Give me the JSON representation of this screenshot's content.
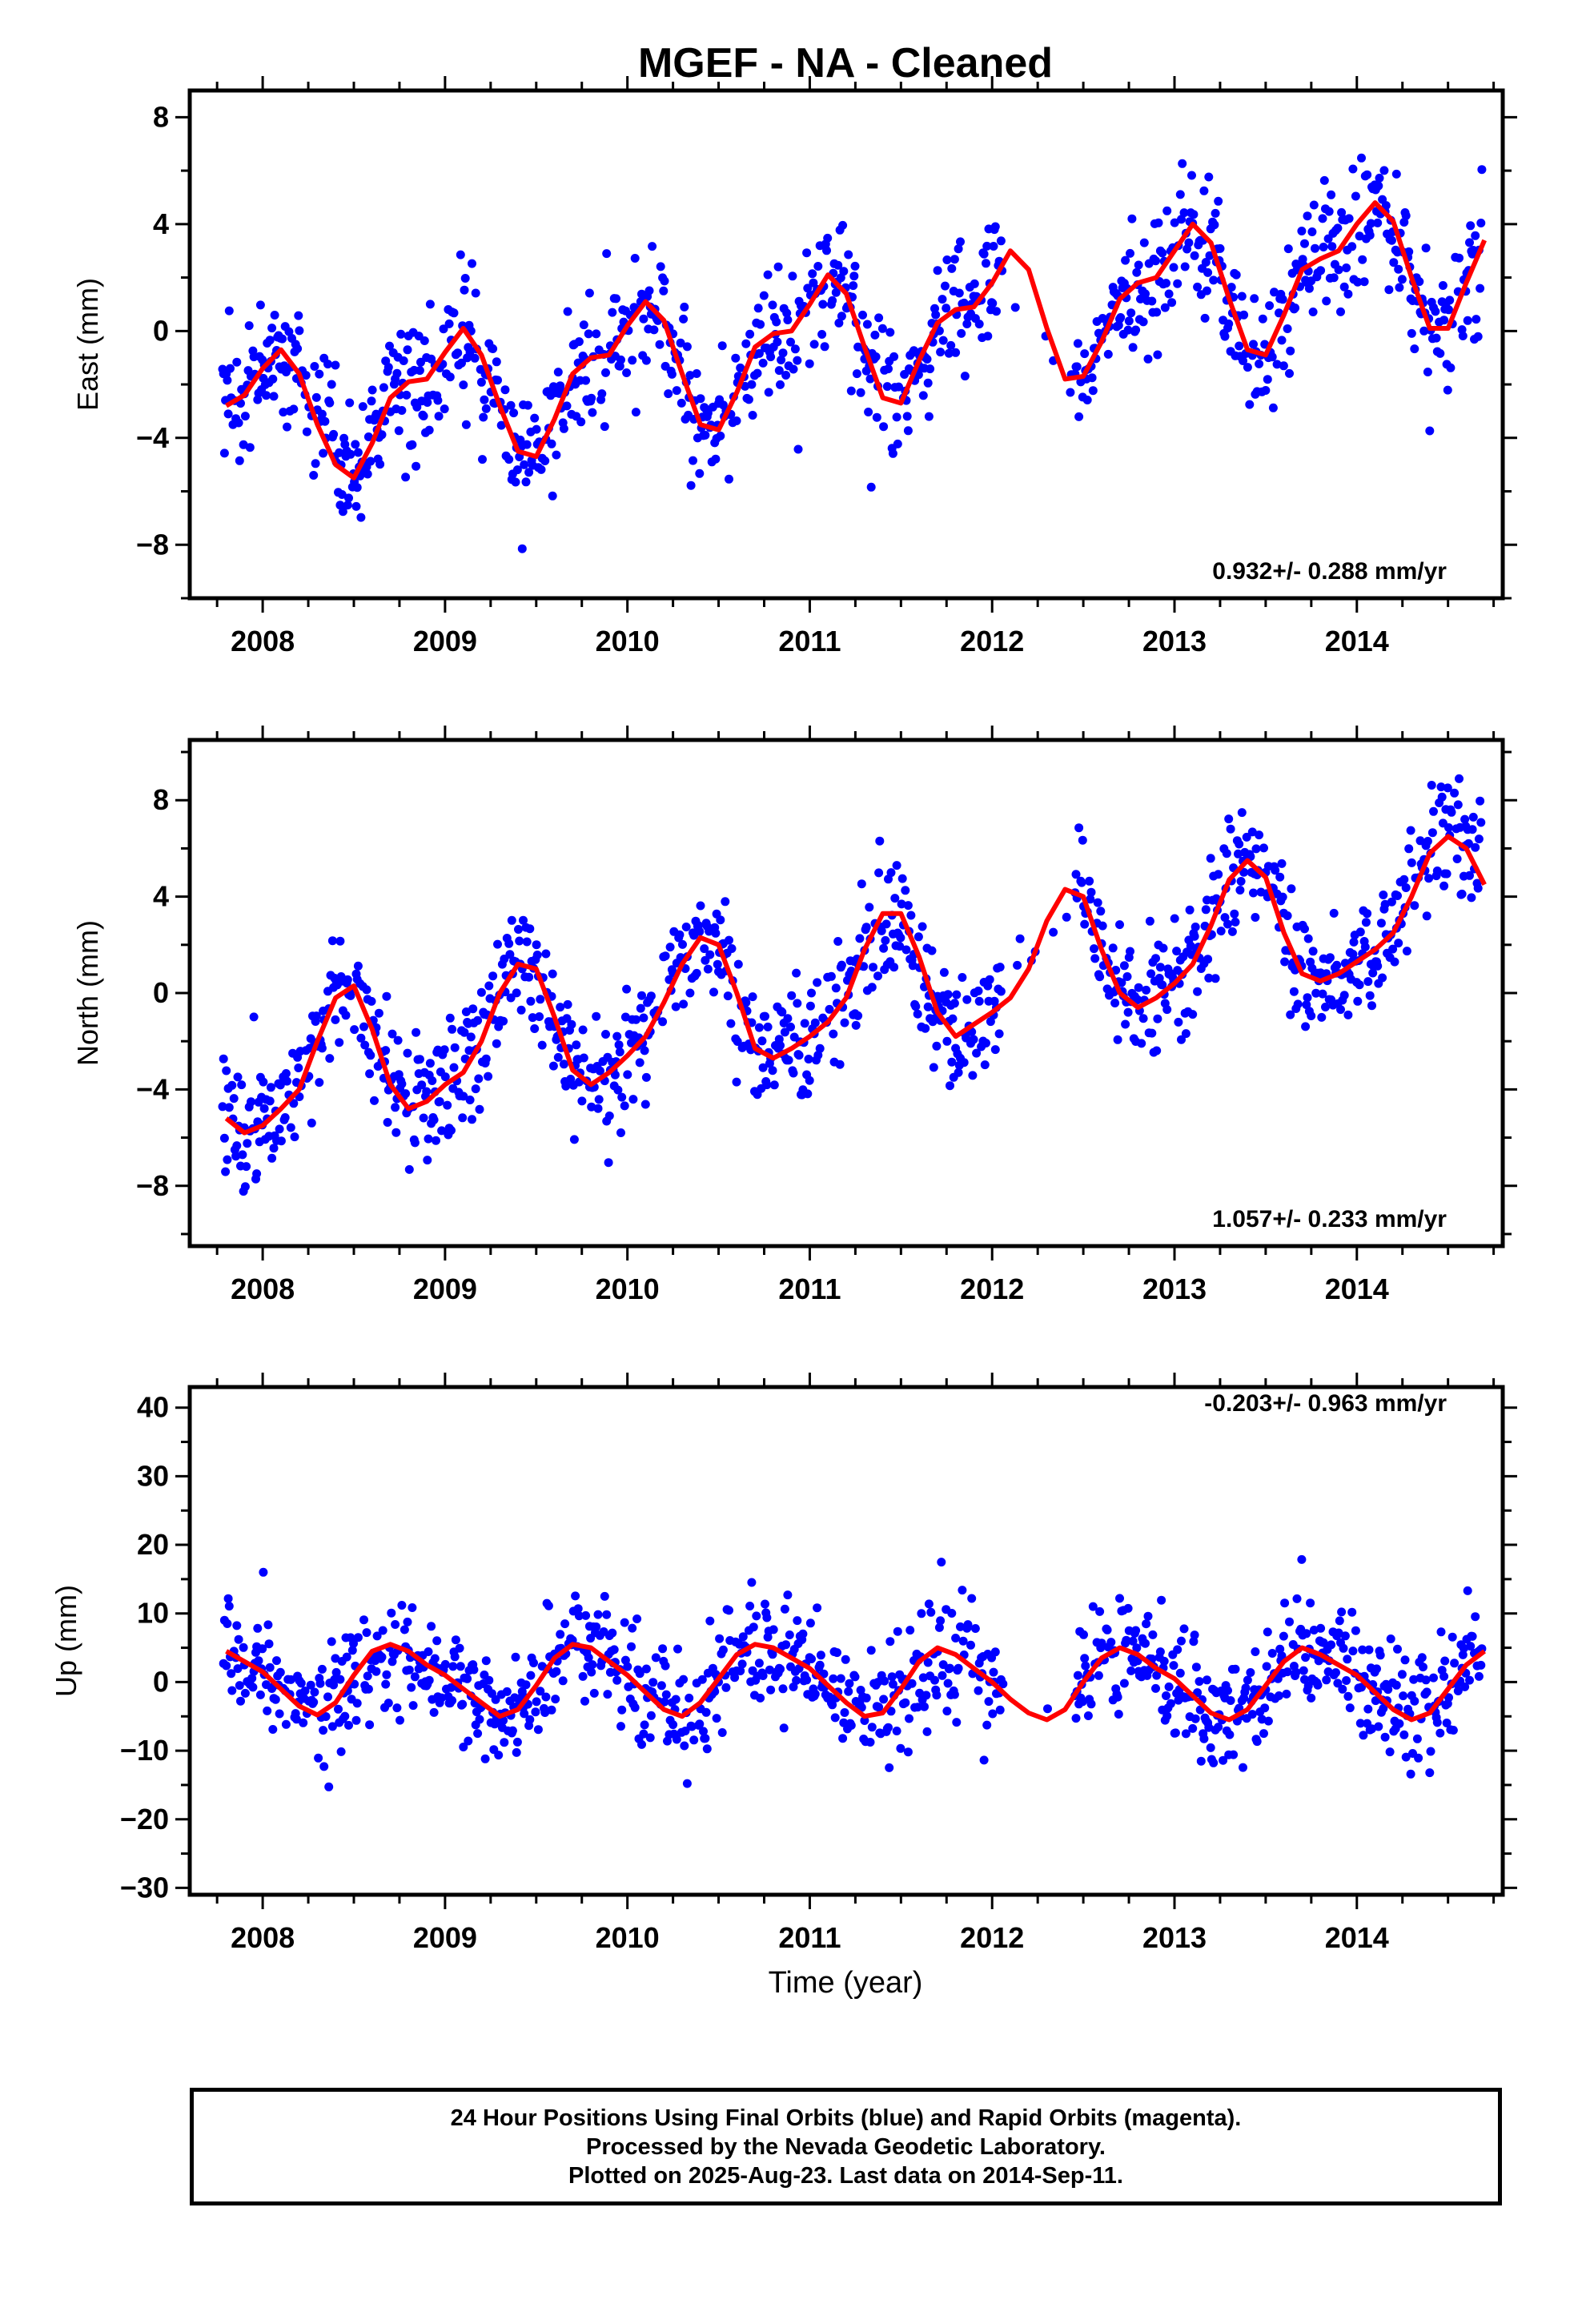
{
  "title": "MGEF  - NA - Cleaned",
  "xlabel": "Time (year)",
  "footer": {
    "line1": "24 Hour Positions Using Final Orbits (blue) and Rapid Orbits (magenta).",
    "line2": "Processed by the Nevada Geodetic Laboratory.",
    "line3": "Plotted on 2025-Aug-23. Last data on 2014-Sep-11."
  },
  "colors": {
    "points": "#0000ff",
    "fit": "#ff0000",
    "axes": "#000000"
  },
  "chart_data": [
    {
      "type": "scatter",
      "ylabel": "East (mm)",
      "rate": "0.932+/- 0.288 mm/yr",
      "xlim": [
        2007.6,
        2014.8
      ],
      "ylim": [
        -10.0,
        9.0
      ],
      "xticks": [
        2008,
        2009,
        2010,
        2011,
        2012,
        2013,
        2014
      ],
      "yticks": [
        -8,
        -4,
        0,
        4,
        8
      ],
      "ytick_labels": [
        "−8",
        "−4",
        "0",
        "4",
        "8"
      ],
      "fit": {
        "x": [
          2007.8,
          2007.9,
          2008.0,
          2008.1,
          2008.2,
          2008.3,
          2008.4,
          2008.5,
          2008.6,
          2008.7,
          2008.8,
          2008.9,
          2009.0,
          2009.1,
          2009.2,
          2009.3,
          2009.4,
          2009.5,
          2009.6,
          2009.7,
          2009.8,
          2009.9,
          2010.0,
          2010.1,
          2010.2,
          2010.3,
          2010.4,
          2010.5,
          2010.6,
          2010.7,
          2010.8,
          2010.9,
          2011.0,
          2011.1,
          2011.2,
          2011.3,
          2011.4,
          2011.5,
          2011.6,
          2011.7,
          2011.8,
          2011.9,
          2012.0,
          2012.1,
          2012.2,
          2012.3,
          2012.4,
          2012.5,
          2012.6,
          2012.7,
          2012.8,
          2012.9,
          2013.0,
          2013.1,
          2013.2,
          2013.3,
          2013.4,
          2013.5,
          2013.6,
          2013.7,
          2013.8,
          2013.9,
          2014.0,
          2014.1,
          2014.2,
          2014.3,
          2014.4,
          2014.5,
          2014.6,
          2014.7
        ],
        "y": [
          -2.8,
          -2.4,
          -1.4,
          -0.7,
          -1.6,
          -3.5,
          -5.0,
          -5.5,
          -4.2,
          -2.5,
          -1.9,
          -1.8,
          -0.8,
          0.1,
          -0.9,
          -2.8,
          -4.5,
          -4.7,
          -3.3,
          -1.6,
          -1.0,
          -0.9,
          0.2,
          1.1,
          0.4,
          -1.6,
          -3.5,
          -3.7,
          -2.3,
          -0.6,
          -0.1,
          0.0,
          1.0,
          2.1,
          1.4,
          -0.6,
          -2.5,
          -2.7,
          -1.1,
          0.3,
          0.8,
          0.9,
          1.8,
          3.0,
          2.3,
          0.1,
          -1.8,
          -1.7,
          -0.4,
          1.2,
          1.8,
          2.0,
          3.0,
          4.0,
          3.3,
          1.2,
          -0.7,
          -0.9,
          0.6,
          2.3,
          2.7,
          3.0,
          4.0,
          4.8,
          4.1,
          2.0,
          0.1,
          0.1,
          1.8,
          3.4
        ]
      }
    },
    {
      "type": "scatter",
      "ylabel": "North (mm)",
      "rate": "1.057+/- 0.233 mm/yr",
      "xlim": [
        2007.6,
        2014.8
      ],
      "ylim": [
        -10.5,
        10.5
      ],
      "xticks": [
        2008,
        2009,
        2010,
        2011,
        2012,
        2013,
        2014
      ],
      "yticks": [
        -8,
        -4,
        0,
        4,
        8
      ],
      "ytick_labels": [
        "−8",
        "−4",
        "0",
        "4",
        "8"
      ],
      "fit": {
        "x": [
          2007.8,
          2007.9,
          2008.0,
          2008.1,
          2008.2,
          2008.3,
          2008.4,
          2008.5,
          2008.6,
          2008.7,
          2008.8,
          2008.9,
          2009.0,
          2009.1,
          2009.2,
          2009.3,
          2009.4,
          2009.5,
          2009.6,
          2009.7,
          2009.8,
          2009.9,
          2010.0,
          2010.1,
          2010.2,
          2010.3,
          2010.4,
          2010.5,
          2010.6,
          2010.7,
          2010.8,
          2010.9,
          2011.0,
          2011.1,
          2011.2,
          2011.3,
          2011.4,
          2011.5,
          2011.6,
          2011.7,
          2011.8,
          2011.9,
          2012.0,
          2012.1,
          2012.2,
          2012.3,
          2012.4,
          2012.5,
          2012.6,
          2012.7,
          2012.8,
          2012.9,
          2013.0,
          2013.1,
          2013.2,
          2013.3,
          2013.4,
          2013.5,
          2013.6,
          2013.7,
          2013.8,
          2013.9,
          2014.0,
          2014.1,
          2014.2,
          2014.3,
          2014.4,
          2014.5,
          2014.6,
          2014.7
        ],
        "y": [
          -5.2,
          -5.8,
          -5.5,
          -4.8,
          -4.0,
          -2.0,
          -0.2,
          0.3,
          -1.5,
          -3.8,
          -4.8,
          -4.5,
          -3.8,
          -3.3,
          -2.0,
          0.0,
          1.2,
          1.0,
          -1.0,
          -3.2,
          -3.8,
          -3.3,
          -2.6,
          -1.8,
          -0.4,
          1.2,
          2.3,
          2.0,
          0.0,
          -2.3,
          -2.7,
          -2.3,
          -1.8,
          -1.2,
          -0.2,
          1.8,
          3.3,
          3.3,
          1.5,
          -0.8,
          -1.8,
          -1.3,
          -0.8,
          -0.2,
          1.0,
          3.0,
          4.3,
          4.0,
          1.8,
          0.0,
          -0.6,
          -0.2,
          0.4,
          1.2,
          2.8,
          4.7,
          5.5,
          4.8,
          2.5,
          0.8,
          0.5,
          0.8,
          1.3,
          1.8,
          2.5,
          4.0,
          5.8,
          6.5,
          6.0,
          4.5
        ]
      }
    },
    {
      "type": "scatter",
      "ylabel": "Up (mm)",
      "rate": "-0.203+/- 0.963 mm/yr",
      "xlim": [
        2007.6,
        2014.8
      ],
      "ylim": [
        -31.0,
        43.0
      ],
      "xticks": [
        2008,
        2009,
        2010,
        2011,
        2012,
        2013,
        2014
      ],
      "yticks": [
        -30,
        -20,
        -10,
        0,
        10,
        20,
        30,
        40
      ],
      "ytick_labels": [
        "−30",
        "−20",
        "−10",
        "0",
        "10",
        "20",
        "30",
        "40"
      ],
      "fit": {
        "x": [
          2007.8,
          2007.9,
          2008.0,
          2008.1,
          2008.2,
          2008.3,
          2008.4,
          2008.5,
          2008.6,
          2008.7,
          2008.8,
          2008.9,
          2009.0,
          2009.1,
          2009.2,
          2009.3,
          2009.4,
          2009.5,
          2009.6,
          2009.7,
          2009.8,
          2009.9,
          2010.0,
          2010.1,
          2010.2,
          2010.3,
          2010.4,
          2010.5,
          2010.6,
          2010.7,
          2010.8,
          2010.9,
          2011.0,
          2011.1,
          2011.2,
          2011.3,
          2011.4,
          2011.5,
          2011.6,
          2011.7,
          2011.8,
          2011.9,
          2012.0,
          2012.1,
          2012.2,
          2012.3,
          2012.4,
          2012.5,
          2012.6,
          2012.7,
          2012.8,
          2012.9,
          2013.0,
          2013.1,
          2013.2,
          2013.3,
          2013.4,
          2013.5,
          2013.6,
          2013.7,
          2013.8,
          2013.9,
          2014.0,
          2014.1,
          2014.2,
          2014.3,
          2014.4,
          2014.5,
          2014.6,
          2014.7
        ],
        "y": [
          4.5,
          3.0,
          1.5,
          -1.0,
          -3.5,
          -4.8,
          -3.0,
          1.0,
          4.5,
          5.5,
          4.5,
          2.5,
          1.0,
          -1.0,
          -3.0,
          -5.0,
          -4.0,
          -0.5,
          3.5,
          5.5,
          5.0,
          3.0,
          1.0,
          -1.5,
          -4.0,
          -5.0,
          -3.0,
          0.5,
          4.0,
          5.5,
          5.0,
          3.5,
          2.0,
          -0.5,
          -3.0,
          -5.0,
          -4.5,
          -1.0,
          3.0,
          5.0,
          4.0,
          2.0,
          0.0,
          -2.5,
          -4.5,
          -5.5,
          -4.0,
          0.0,
          3.5,
          5.0,
          4.0,
          2.0,
          0.5,
          -2.0,
          -4.5,
          -5.5,
          -4.0,
          -0.5,
          3.0,
          5.0,
          4.0,
          2.5,
          1.0,
          -1.5,
          -4.0,
          -5.5,
          -4.5,
          -1.0,
          2.5,
          4.5
        ]
      }
    }
  ]
}
